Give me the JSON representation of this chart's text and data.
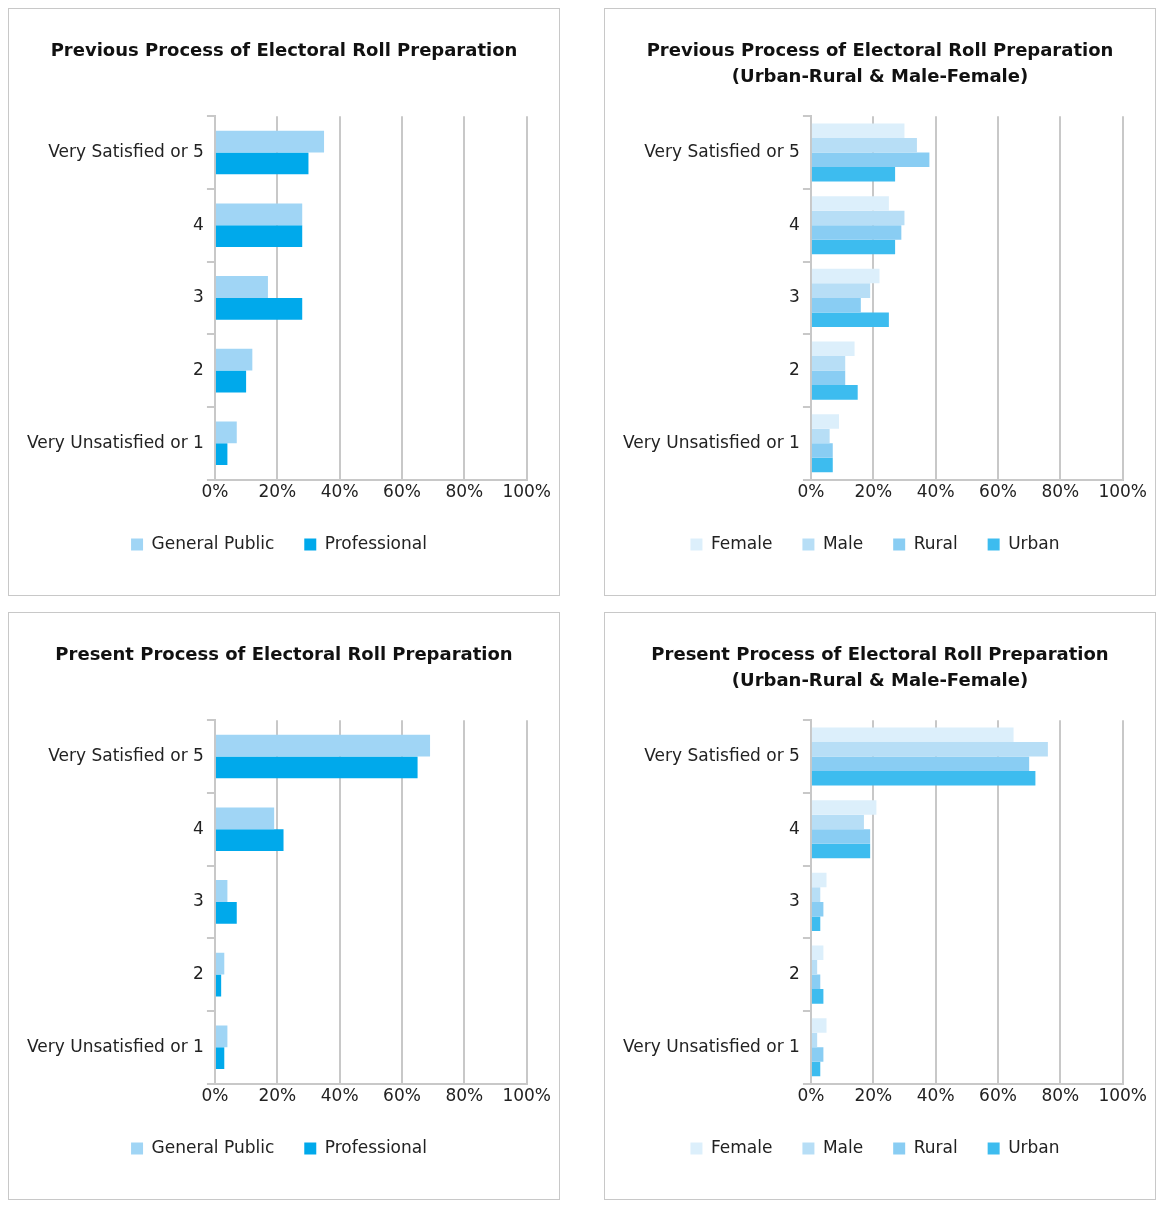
{
  "chart_data": [
    {
      "type": "bar",
      "orientation": "horizontal",
      "title": "Previous Process of Electoral Roll Preparation",
      "categories": [
        "Very Satisfied or 5",
        "4",
        "3",
        "2",
        "Very Unsatisfied or 1"
      ],
      "series": [
        {
          "name": "General Public",
          "color": "#a0d5f5",
          "values": [
            35,
            28,
            17,
            12,
            7
          ]
        },
        {
          "name": "Professional",
          "color": "#00a9eb",
          "values": [
            30,
            28,
            28,
            10,
            4
          ]
        }
      ],
      "xlim": [
        0,
        100
      ],
      "xticks": [
        {
          "value": 0,
          "label": "0%"
        },
        {
          "value": 20,
          "label": "20%"
        },
        {
          "value": 40,
          "label": "40%"
        },
        {
          "value": 60,
          "label": "60%"
        },
        {
          "value": 80,
          "label": "80%"
        },
        {
          "value": 100,
          "label": "100%"
        }
      ],
      "grid": "x",
      "legend": "bottom"
    },
    {
      "type": "bar",
      "orientation": "horizontal",
      "title": "Previous Process of Electoral Roll Preparation (Urban-Rural & Male-Female)",
      "categories": [
        "Very Satisfied or 5",
        "4",
        "3",
        "2",
        "Very Unsatisfied or 1"
      ],
      "series": [
        {
          "name": "Female",
          "color": "#dceffb",
          "values": [
            30,
            25,
            22,
            14,
            9
          ]
        },
        {
          "name": "Male",
          "color": "#b7def6",
          "values": [
            34,
            30,
            19,
            11,
            6
          ]
        },
        {
          "name": "Rural",
          "color": "#89cdf3",
          "values": [
            38,
            29,
            16,
            11,
            7
          ]
        },
        {
          "name": "Urban",
          "color": "#3dbcef",
          "values": [
            27,
            27,
            25,
            15,
            7
          ]
        }
      ],
      "xlim": [
        0,
        100
      ],
      "xticks": [
        {
          "value": 0,
          "label": "0%"
        },
        {
          "value": 20,
          "label": "20%"
        },
        {
          "value": 40,
          "label": "40%"
        },
        {
          "value": 60,
          "label": "60%"
        },
        {
          "value": 80,
          "label": "80%"
        },
        {
          "value": 100,
          "label": "100%"
        }
      ],
      "grid": "x",
      "legend": "bottom"
    },
    {
      "type": "bar",
      "orientation": "horizontal",
      "title": "Present Process of Electoral Roll Preparation",
      "categories": [
        "Very Satisfied or 5",
        "4",
        "3",
        "2",
        "Very Unsatisfied or 1"
      ],
      "series": [
        {
          "name": "General Public",
          "color": "#a0d5f5",
          "values": [
            69,
            19,
            4,
            3,
            4
          ]
        },
        {
          "name": "Professional",
          "color": "#00a9eb",
          "values": [
            65,
            22,
            7,
            2,
            3
          ]
        }
      ],
      "xlim": [
        0,
        100
      ],
      "xticks": [
        {
          "value": 0,
          "label": "0%"
        },
        {
          "value": 20,
          "label": "20%"
        },
        {
          "value": 40,
          "label": "40%"
        },
        {
          "value": 60,
          "label": "60%"
        },
        {
          "value": 80,
          "label": "80%"
        },
        {
          "value": 100,
          "label": "100%"
        }
      ],
      "grid": "x",
      "legend": "bottom"
    },
    {
      "type": "bar",
      "orientation": "horizontal",
      "title": "Present Process of Electoral Roll Preparation (Urban-Rural & Male-Female)",
      "categories": [
        "Very Satisfied or 5",
        "4",
        "3",
        "2",
        "Very Unsatisfied or 1"
      ],
      "series": [
        {
          "name": "Female",
          "color": "#dceffb",
          "values": [
            65,
            21,
            5,
            4,
            5
          ]
        },
        {
          "name": "Male",
          "color": "#b7def6",
          "values": [
            76,
            17,
            3,
            2,
            2
          ]
        },
        {
          "name": "Rural",
          "color": "#89cdf3",
          "values": [
            70,
            19,
            4,
            3,
            4
          ]
        },
        {
          "name": "Urban",
          "color": "#3dbcef",
          "values": [
            72,
            19,
            3,
            4,
            3
          ]
        }
      ],
      "xlim": [
        0,
        100
      ],
      "xticks": [
        {
          "value": 0,
          "label": "0%"
        },
        {
          "value": 20,
          "label": "20%"
        },
        {
          "value": 40,
          "label": "40%"
        },
        {
          "value": 60,
          "label": "60%"
        },
        {
          "value": 80,
          "label": "80%"
        },
        {
          "value": 100,
          "label": "100%"
        }
      ],
      "grid": "x",
      "legend": "bottom"
    }
  ]
}
